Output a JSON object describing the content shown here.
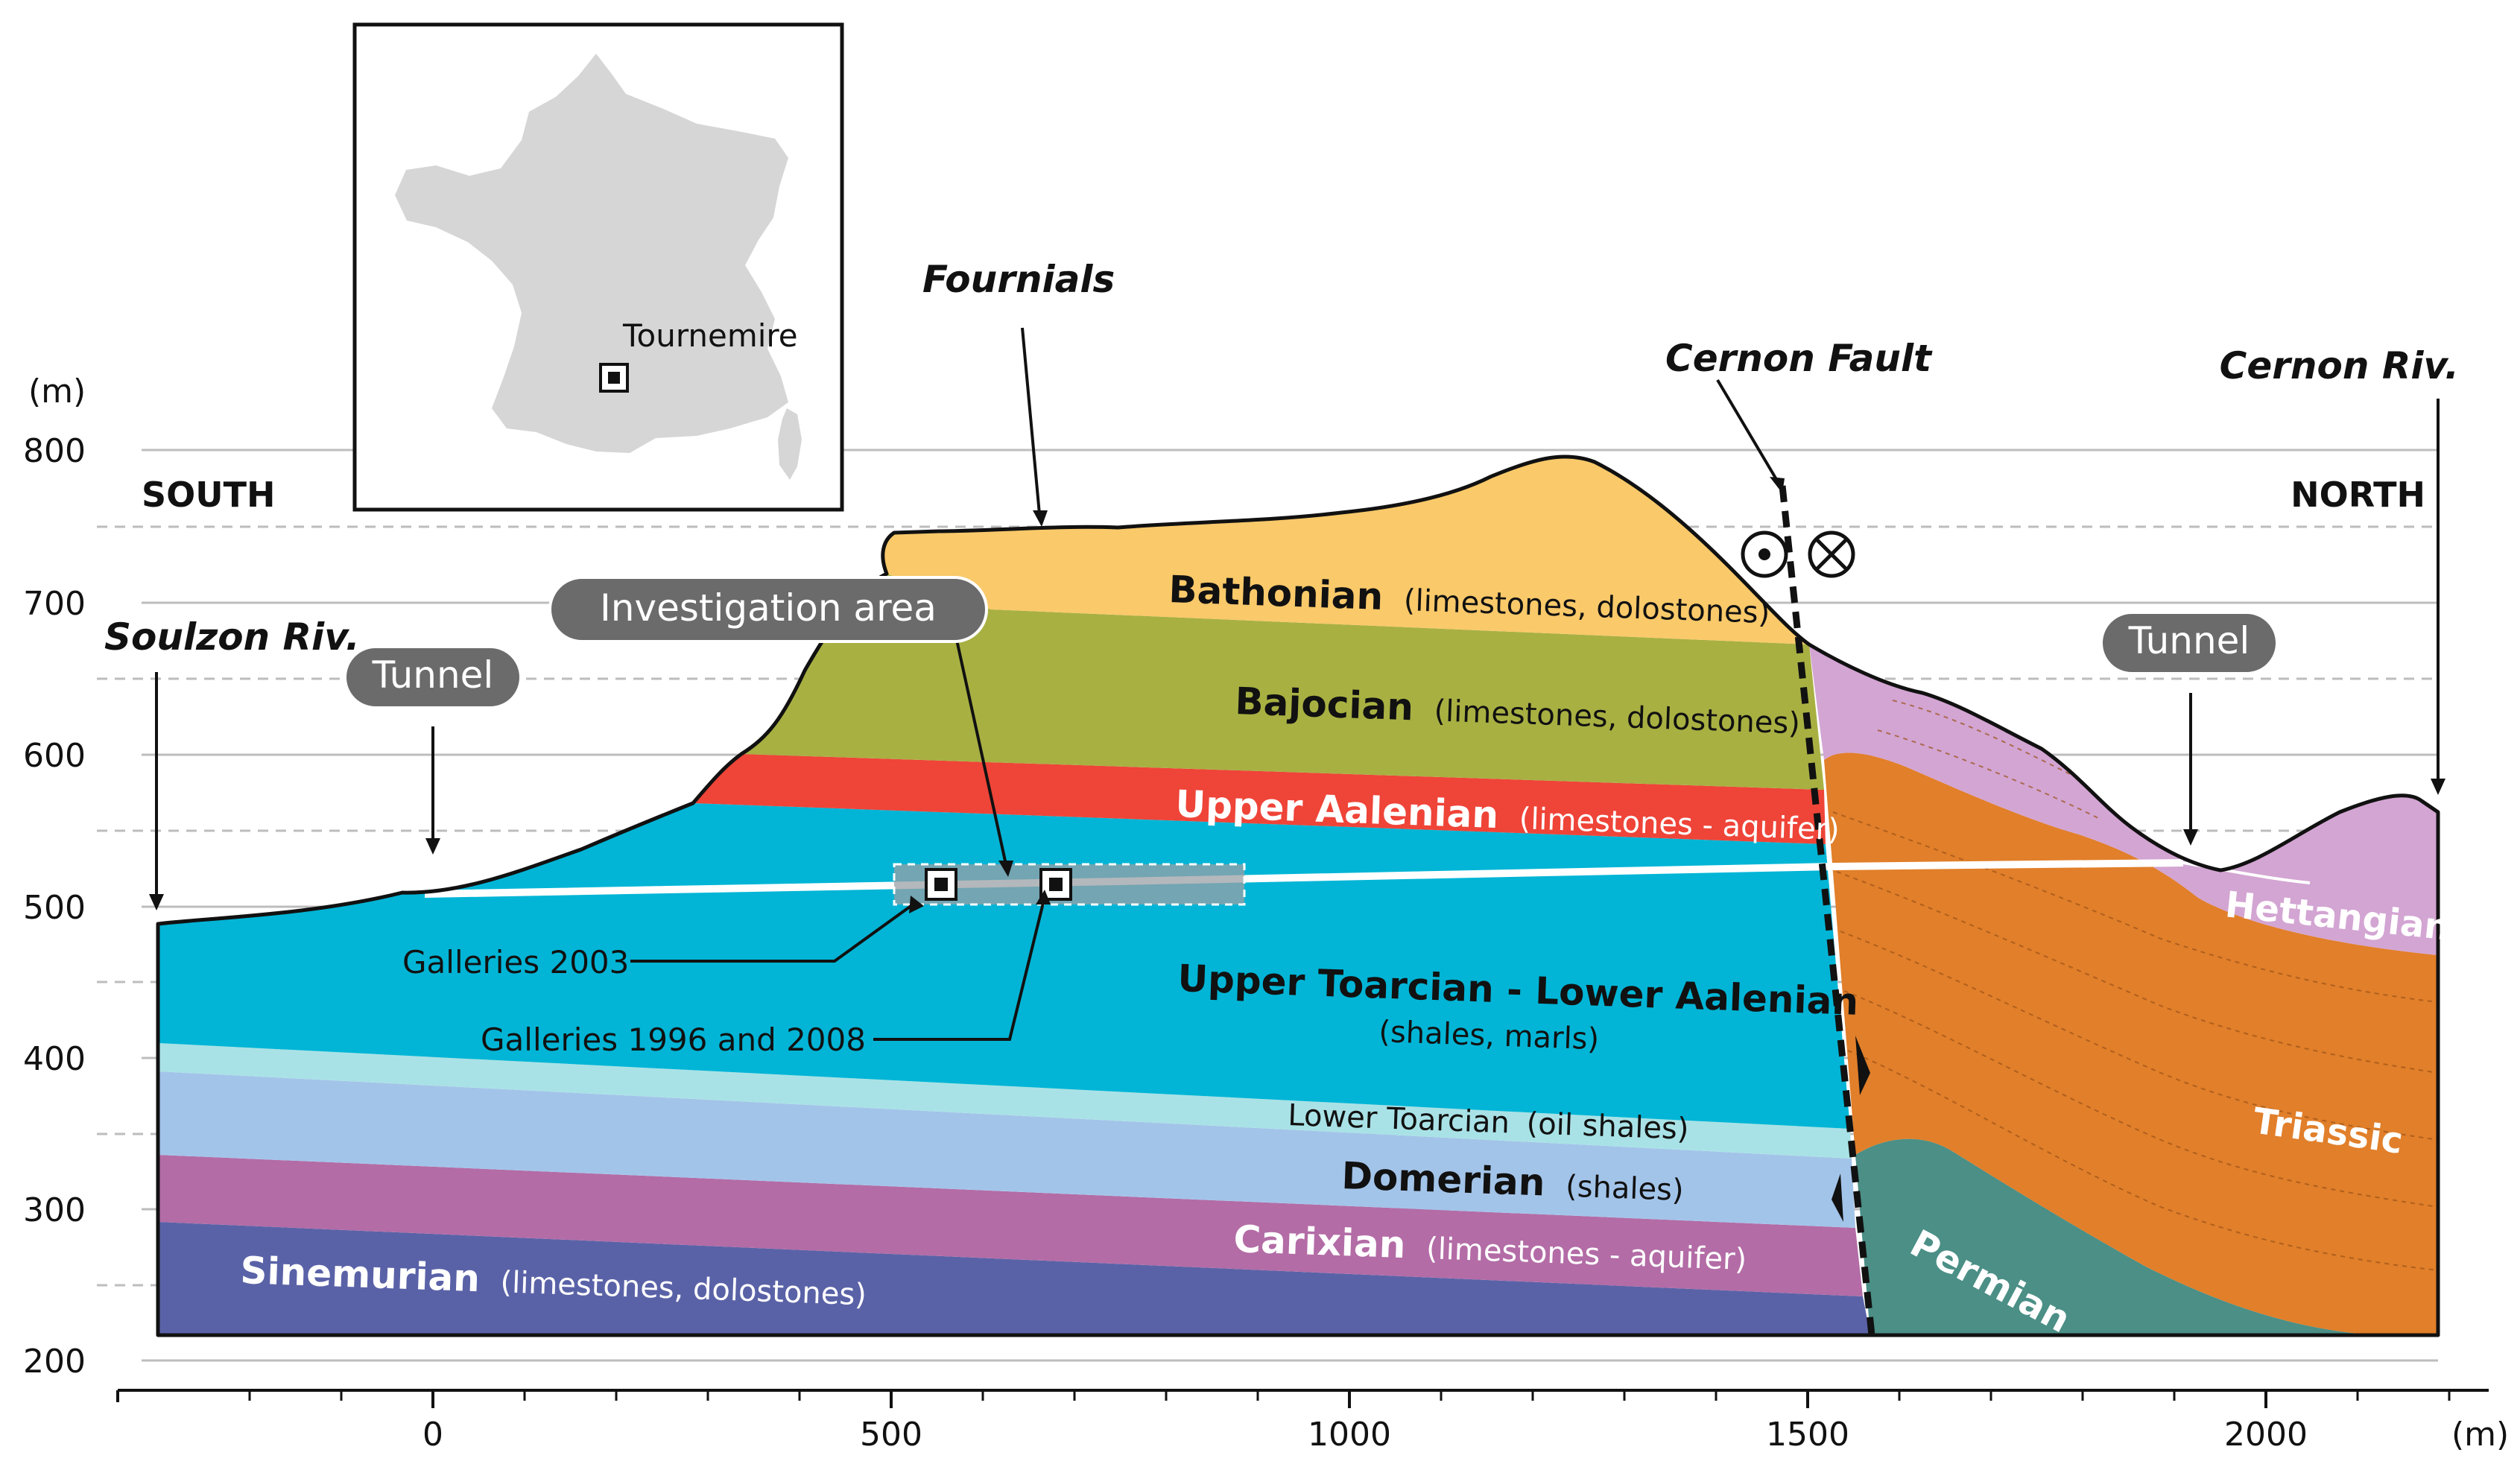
{
  "inset": {
    "site_label": "Tournemire"
  },
  "axes": {
    "y_unit": "(m)",
    "x_unit": "(m)",
    "y_ticks": [
      "800",
      "700",
      "600",
      "500",
      "400",
      "300",
      "200"
    ],
    "x_ticks": [
      "0",
      "500",
      "1000",
      "1500",
      "2000"
    ]
  },
  "orientation": {
    "left": "SOUTH",
    "right": "NORTH"
  },
  "places": {
    "fournials": "Fournials",
    "cernon_fault": "Cernon Fault",
    "cernon_riv": "Cernon Riv.",
    "soulzon_riv": "Soulzon Riv."
  },
  "callouts": {
    "tunnel_left": "Tunnel",
    "tunnel_right": "Tunnel",
    "investigation": "Investigation area",
    "galleries_2003": "Galleries 2003",
    "galleries_1996": "Galleries 1996 and 2008"
  },
  "layers": {
    "bathonian": {
      "name": "Bathonian",
      "desc": "(limestones, dolostones)"
    },
    "bajocian": {
      "name": "Bajocian",
      "desc": "(limestones, dolostones)"
    },
    "upper_aalenian": {
      "name": "Upper Aalenian",
      "desc": "(limestones - aquifer)"
    },
    "upper_toarcian": {
      "name": "Upper Toarcian - Lower Aalenian",
      "desc": "(shales, marls)"
    },
    "lower_toarcian": {
      "name": "Lower Toarcian",
      "desc": "(oil shales)"
    },
    "domerian": {
      "name": "Domerian",
      "desc": "(shales)"
    },
    "carixian": {
      "name": "Carixian",
      "desc": "(limestones - aquifer)"
    },
    "sinemurian": {
      "name": "Sinemurian",
      "desc": "(limestones, dolostones)"
    },
    "hettangian": {
      "name": "Hettangian"
    },
    "triassic": {
      "name": "Triassic"
    },
    "permian": {
      "name": "Permian"
    }
  },
  "colors": {
    "bathonian": "#f9c96a",
    "bajocian": "#a8b042",
    "upper_aalenian": "#ef4438",
    "upper_toarcian": "#02b5d6",
    "lower_toarcian": "#a9e2e6",
    "domerian": "#a3c4e9",
    "carixian": "#b36ca6",
    "sinemurian": "#5a62a7",
    "hettangian": "#d3a5d3",
    "triassic": "#e17f2a",
    "permian": "#4b8f86"
  }
}
